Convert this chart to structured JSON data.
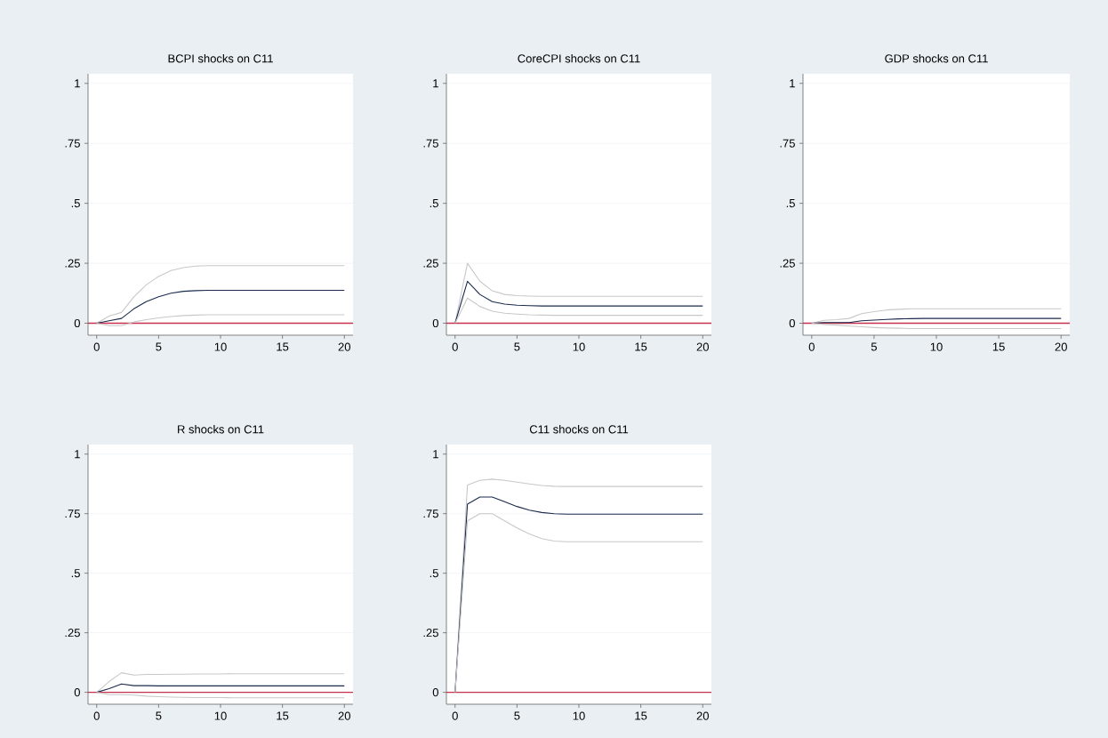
{
  "chart_data": [
    {
      "type": "line",
      "title": "BCPI shocks on C11",
      "x": [
        0,
        1,
        2,
        3,
        4,
        5,
        6,
        7,
        8,
        9,
        10,
        11,
        12,
        13,
        14,
        15,
        16,
        17,
        18,
        19,
        20
      ],
      "xlim": [
        -0.7,
        20.7
      ],
      "xticks": [
        0,
        5,
        10,
        15,
        20
      ],
      "ylim": [
        -0.05,
        1.04
      ],
      "yticks": [
        0,
        {
          "value": 0.25,
          "label": ".25"
        },
        {
          "value": 0.5,
          "label": ".5"
        },
        {
          "value": 0.75,
          "label": ".75"
        },
        1
      ],
      "grid": "y",
      "series": [
        {
          "color": "#c8c8c8",
          "values": [
            0,
            0.03,
            0.045,
            0.11,
            0.16,
            0.195,
            0.22,
            0.232,
            0.238,
            0.24,
            0.24,
            0.24,
            0.24,
            0.24,
            0.24,
            0.24,
            0.24,
            0.24,
            0.24,
            0.24,
            0.24
          ]
        },
        {
          "color": "#1a2b4c",
          "values": [
            0,
            0.01,
            0.02,
            0.06,
            0.09,
            0.11,
            0.125,
            0.133,
            0.136,
            0.137,
            0.137,
            0.137,
            0.137,
            0.137,
            0.137,
            0.137,
            0.137,
            0.137,
            0.137,
            0.137,
            0.137
          ]
        },
        {
          "color": "#c8c8c8",
          "values": [
            0,
            -0.01,
            -0.01,
            0.005,
            0.015,
            0.022,
            0.028,
            0.032,
            0.034,
            0.035,
            0.035,
            0.035,
            0.035,
            0.035,
            0.035,
            0.035,
            0.035,
            0.035,
            0.035,
            0.035,
            0.035
          ]
        }
      ],
      "ref_lines": [
        {
          "axis": "y",
          "value": 0,
          "color": "#c8304e"
        }
      ]
    },
    {
      "type": "line",
      "title": "CoreCPI shocks on C11",
      "x": [
        0,
        1,
        2,
        3,
        4,
        5,
        6,
        7,
        8,
        9,
        10,
        11,
        12,
        13,
        14,
        15,
        16,
        17,
        18,
        19,
        20
      ],
      "xlim": [
        -0.7,
        20.7
      ],
      "xticks": [
        0,
        5,
        10,
        15,
        20
      ],
      "ylim": [
        -0.05,
        1.04
      ],
      "yticks": [
        0,
        {
          "value": 0.25,
          "label": ".25"
        },
        {
          "value": 0.5,
          "label": ".5"
        },
        {
          "value": 0.75,
          "label": ".75"
        },
        1
      ],
      "grid": "y",
      "series": [
        {
          "color": "#c8c8c8",
          "values": [
            0,
            0.25,
            0.175,
            0.135,
            0.12,
            0.115,
            0.113,
            0.112,
            0.112,
            0.112,
            0.112,
            0.112,
            0.112,
            0.112,
            0.112,
            0.112,
            0.112,
            0.112,
            0.112,
            0.112,
            0.112
          ]
        },
        {
          "color": "#1a2b4c",
          "values": [
            0,
            0.175,
            0.12,
            0.09,
            0.08,
            0.075,
            0.073,
            0.072,
            0.072,
            0.072,
            0.072,
            0.072,
            0.072,
            0.072,
            0.072,
            0.072,
            0.072,
            0.072,
            0.072,
            0.072,
            0.072
          ]
        },
        {
          "color": "#c8c8c8",
          "values": [
            0,
            0.105,
            0.07,
            0.05,
            0.042,
            0.038,
            0.035,
            0.034,
            0.033,
            0.033,
            0.033,
            0.033,
            0.033,
            0.033,
            0.033,
            0.033,
            0.033,
            0.033,
            0.033,
            0.033,
            0.033
          ]
        }
      ],
      "ref_lines": [
        {
          "axis": "y",
          "value": 0,
          "color": "#c8304e"
        }
      ]
    },
    {
      "type": "line",
      "title": "GDP shocks on C11",
      "x": [
        0,
        1,
        2,
        3,
        4,
        5,
        6,
        7,
        8,
        9,
        10,
        11,
        12,
        13,
        14,
        15,
        16,
        17,
        18,
        19,
        20
      ],
      "xlim": [
        -0.7,
        20.7
      ],
      "xticks": [
        0,
        5,
        10,
        15,
        20
      ],
      "ylim": [
        -0.05,
        1.04
      ],
      "yticks": [
        0,
        {
          "value": 0.25,
          "label": ".25"
        },
        {
          "value": 0.5,
          "label": ".5"
        },
        {
          "value": 0.75,
          "label": ".75"
        },
        1
      ],
      "grid": "y",
      "series": [
        {
          "color": "#c8c8c8",
          "values": [
            0,
            0.012,
            0.015,
            0.02,
            0.04,
            0.048,
            0.055,
            0.058,
            0.06,
            0.06,
            0.06,
            0.06,
            0.06,
            0.06,
            0.06,
            0.06,
            0.06,
            0.06,
            0.06,
            0.06,
            0.06
          ]
        },
        {
          "color": "#1a2b4c",
          "values": [
            0,
            0.003,
            0.003,
            0.003,
            0.01,
            0.013,
            0.016,
            0.018,
            0.019,
            0.02,
            0.02,
            0.02,
            0.02,
            0.02,
            0.02,
            0.02,
            0.02,
            0.02,
            0.02,
            0.02,
            0.02
          ]
        },
        {
          "color": "#c8c8c8",
          "values": [
            0,
            -0.005,
            -0.008,
            -0.012,
            -0.015,
            -0.018,
            -0.02,
            -0.021,
            -0.022,
            -0.022,
            -0.022,
            -0.022,
            -0.022,
            -0.022,
            -0.022,
            -0.022,
            -0.022,
            -0.022,
            -0.022,
            -0.022,
            -0.022
          ]
        }
      ],
      "ref_lines": [
        {
          "axis": "y",
          "value": 0,
          "color": "#c8304e"
        }
      ]
    },
    {
      "type": "line",
      "title": "R shocks on C11",
      "x": [
        0,
        1,
        2,
        3,
        4,
        5,
        6,
        7,
        8,
        9,
        10,
        11,
        12,
        13,
        14,
        15,
        16,
        17,
        18,
        19,
        20
      ],
      "xlim": [
        -0.7,
        20.7
      ],
      "xticks": [
        0,
        5,
        10,
        15,
        20
      ],
      "ylim": [
        -0.05,
        1.04
      ],
      "yticks": [
        0,
        {
          "value": 0.25,
          "label": ".25"
        },
        {
          "value": 0.5,
          "label": ".5"
        },
        {
          "value": 0.75,
          "label": ".75"
        },
        1
      ],
      "grid": "y",
      "series": [
        {
          "color": "#c8c8c8",
          "values": [
            0,
            0.045,
            0.082,
            0.072,
            0.075,
            0.075,
            0.076,
            0.076,
            0.077,
            0.077,
            0.077,
            0.078,
            0.078,
            0.078,
            0.078,
            0.078,
            0.078,
            0.078,
            0.078,
            0.078,
            0.078
          ]
        },
        {
          "color": "#1a2b4c",
          "values": [
            0,
            0.015,
            0.035,
            0.028,
            0.028,
            0.027,
            0.027,
            0.027,
            0.027,
            0.027,
            0.027,
            0.027,
            0.027,
            0.027,
            0.027,
            0.027,
            0.027,
            0.027,
            0.027,
            0.027,
            0.027
          ]
        },
        {
          "color": "#c8c8c8",
          "values": [
            0,
            -0.01,
            -0.01,
            -0.012,
            -0.016,
            -0.018,
            -0.02,
            -0.021,
            -0.022,
            -0.022,
            -0.022,
            -0.023,
            -0.023,
            -0.023,
            -0.023,
            -0.023,
            -0.023,
            -0.023,
            -0.023,
            -0.023,
            -0.023
          ]
        }
      ],
      "ref_lines": [
        {
          "axis": "y",
          "value": 0,
          "color": "#c8304e"
        }
      ]
    },
    {
      "type": "line",
      "title": "C11 shocks on C11",
      "x": [
        0,
        1,
        2,
        3,
        4,
        5,
        6,
        7,
        8,
        9,
        10,
        11,
        12,
        13,
        14,
        15,
        16,
        17,
        18,
        19,
        20
      ],
      "xlim": [
        -0.7,
        20.7
      ],
      "xticks": [
        0,
        5,
        10,
        15,
        20
      ],
      "ylim": [
        -0.05,
        1.04
      ],
      "yticks": [
        0,
        {
          "value": 0.25,
          "label": ".25"
        },
        {
          "value": 0.5,
          "label": ".5"
        },
        {
          "value": 0.75,
          "label": ".75"
        },
        1
      ],
      "grid": "y",
      "series": [
        {
          "color": "#c8c8c8",
          "values": [
            0,
            0.87,
            0.89,
            0.895,
            0.89,
            0.882,
            0.875,
            0.868,
            0.865,
            0.864,
            0.864,
            0.864,
            0.864,
            0.864,
            0.864,
            0.864,
            0.864,
            0.864,
            0.864,
            0.864,
            0.864
          ]
        },
        {
          "color": "#1a2b4c",
          "values": [
            0,
            0.79,
            0.82,
            0.82,
            0.8,
            0.78,
            0.765,
            0.755,
            0.75,
            0.748,
            0.748,
            0.748,
            0.748,
            0.748,
            0.748,
            0.748,
            0.748,
            0.748,
            0.748,
            0.748,
            0.748
          ]
        },
        {
          "color": "#c8c8c8",
          "values": [
            0,
            0.72,
            0.75,
            0.75,
            0.72,
            0.69,
            0.665,
            0.645,
            0.635,
            0.632,
            0.632,
            0.632,
            0.632,
            0.632,
            0.632,
            0.632,
            0.632,
            0.632,
            0.632,
            0.632,
            0.632
          ]
        }
      ],
      "ref_lines": [
        {
          "axis": "y",
          "value": 0,
          "color": "#c8304e"
        }
      ]
    }
  ]
}
